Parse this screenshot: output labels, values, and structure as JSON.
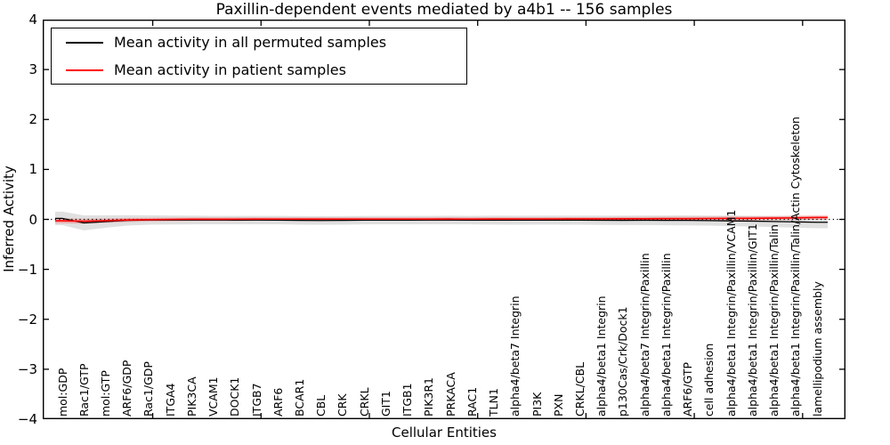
{
  "chart_data": {
    "type": "line",
    "title": "Paxillin-dependent events mediated by a4b1 -- 156 samples",
    "xlabel": "Cellular Entities",
    "ylabel": "Inferred Activity",
    "ylim": [
      -4,
      4
    ],
    "ytick_labels": [
      "4",
      "3",
      "2",
      "1",
      "0",
      "−1",
      "−2",
      "−3",
      "−4"
    ],
    "grid": false,
    "legend_position": "upper left",
    "zero_line": {
      "value": 0,
      "style": "dotted",
      "color": "#000000"
    },
    "categories": [
      "mol:GDP",
      "Rac1/GTP",
      "mol:GTP",
      "ARF6/GDP",
      "Rac1/GDP",
      "ITGA4",
      "PIK3CA",
      "VCAM1",
      "DOCK1",
      "ITGB7",
      "ARF6",
      "BCAR1",
      "CBL",
      "CRK",
      "CRKL",
      "GIT1",
      "ITGB1",
      "PIK3R1",
      "PRKACA",
      "RAC1",
      "TLN1",
      "alpha4/beta7 Integrin",
      "PI3K",
      "PXN",
      "CRKL/CBL",
      "alpha4/beta1 Integrin",
      "p130Cas/Crk/Dock1",
      "alpha4/beta7 Integrin/Paxillin",
      "alpha4/beta1 Integrin/Paxillin",
      "ARF6/GTP",
      "cell adhesion",
      "alpha4/beta1 Integrin/Paxillin/VCAM1",
      "alpha4/beta1 Integrin/Paxillin/GIT1",
      "alpha4/beta1 Integrin/Paxillin/Talin",
      "alpha4/beta1 Integrin/Paxillin/Talin/Actin Cytoskeleton",
      "lamellipodium assembly"
    ],
    "series": [
      {
        "name": "Mean activity in all permuted samples",
        "color": "#000000",
        "line_width": 1.3,
        "band_color": "rgba(0,0,0,0.12)",
        "values": [
          0.02,
          -0.07,
          -0.045,
          -0.02,
          -0.012,
          -0.012,
          -0.013,
          -0.013,
          -0.014,
          -0.013,
          -0.014,
          -0.02,
          -0.022,
          -0.02,
          -0.015,
          -0.014,
          -0.015,
          -0.013,
          -0.013,
          -0.014,
          -0.015,
          -0.016,
          -0.015,
          -0.015,
          -0.016,
          -0.018,
          -0.019,
          -0.018,
          -0.02,
          -0.02,
          -0.025,
          -0.03,
          -0.035,
          -0.042,
          -0.05,
          -0.058
        ],
        "std": [
          0.135,
          0.15,
          0.125,
          0.105,
          0.095,
          0.09,
          0.088,
          0.085,
          0.085,
          0.085,
          0.085,
          0.087,
          0.088,
          0.087,
          0.085,
          0.085,
          0.086,
          0.085,
          0.086,
          0.086,
          0.09,
          0.09,
          0.09,
          0.09,
          0.092,
          0.093,
          0.094,
          0.095,
          0.098,
          0.1,
          0.1,
          0.105,
          0.108,
          0.112,
          0.118,
          0.12
        ]
      },
      {
        "name": "Mean activity in patient samples",
        "color": "#ff0000",
        "line_width": 1.6,
        "band_color": "rgba(255,0,0,0.22)",
        "values": [
          -0.028,
          -0.036,
          -0.025,
          -0.012,
          -0.005,
          0.0,
          0.003,
          0.004,
          0.004,
          0.005,
          0.005,
          0.005,
          0.005,
          0.006,
          0.006,
          0.005,
          0.006,
          0.006,
          0.007,
          0.006,
          0.007,
          0.008,
          0.008,
          0.009,
          0.01,
          0.01,
          0.012,
          0.012,
          0.014,
          0.015,
          0.018,
          0.02,
          0.022,
          0.025,
          0.03,
          0.038
        ],
        "std": [
          0.05,
          0.05,
          0.045,
          0.04,
          0.038,
          0.036,
          0.035,
          0.035,
          0.035,
          0.035,
          0.035,
          0.035,
          0.035,
          0.035,
          0.035,
          0.035,
          0.035,
          0.035,
          0.035,
          0.035,
          0.035,
          0.035,
          0.035,
          0.035,
          0.035,
          0.035,
          0.036,
          0.036,
          0.037,
          0.037,
          0.038,
          0.038,
          0.039,
          0.04,
          0.042,
          0.045
        ]
      }
    ]
  }
}
